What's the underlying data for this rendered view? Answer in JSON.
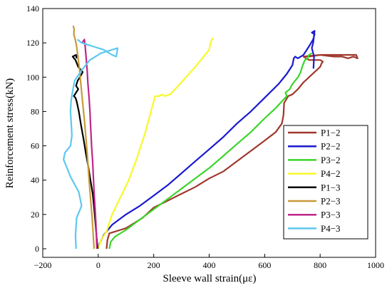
{
  "chart_data": {
    "type": "line",
    "title": "",
    "xlabel": "Sleeve wall strain(με)",
    "ylabel": "Reinforcement stress(kN)",
    "xlim": [
      -200,
      1000
    ],
    "ylim": [
      -5,
      140
    ],
    "xticks": [
      -200,
      0,
      200,
      400,
      600,
      800,
      1000
    ],
    "yticks": [
      0,
      20,
      40,
      60,
      80,
      100,
      120,
      140
    ],
    "grid": false,
    "legend": "center-right",
    "series": [
      {
        "name": "P1−2",
        "color": "#a0382d",
        "points": [
          [
            30,
            0
          ],
          [
            33,
            5
          ],
          [
            40,
            9
          ],
          [
            60,
            10
          ],
          [
            80,
            11
          ],
          [
            100,
            12
          ],
          [
            130,
            15
          ],
          [
            160,
            18
          ],
          [
            180,
            21
          ],
          [
            200,
            24
          ],
          [
            250,
            28
          ],
          [
            300,
            32
          ],
          [
            350,
            36
          ],
          [
            400,
            41
          ],
          [
            450,
            45
          ],
          [
            500,
            51
          ],
          [
            550,
            57
          ],
          [
            600,
            63
          ],
          [
            640,
            68
          ],
          [
            662,
            73
          ],
          [
            668,
            78
          ],
          [
            670,
            85
          ],
          [
            685,
            89
          ],
          [
            700,
            90
          ],
          [
            720,
            93
          ],
          [
            740,
            97
          ],
          [
            760,
            100
          ],
          [
            780,
            103
          ],
          [
            800,
            106
          ],
          [
            805,
            108
          ],
          [
            810,
            109
          ],
          [
            800,
            110
          ],
          [
            760,
            110
          ],
          [
            740,
            112
          ],
          [
            800,
            113
          ],
          [
            850,
            112
          ],
          [
            880,
            112
          ],
          [
            900,
            111
          ],
          [
            920,
            112
          ],
          [
            935,
            111
          ],
          [
            930,
            113
          ],
          [
            900,
            113
          ],
          [
            860,
            113
          ],
          [
            800,
            113
          ],
          [
            760,
            112
          ]
        ]
      },
      {
        "name": "P2−2",
        "color": "#1a1ad0",
        "points": [
          [
            0,
            0
          ],
          [
            5,
            3
          ],
          [
            20,
            8
          ],
          [
            50,
            14
          ],
          [
            100,
            20
          ],
          [
            150,
            25
          ],
          [
            200,
            31
          ],
          [
            250,
            37
          ],
          [
            300,
            44
          ],
          [
            350,
            51
          ],
          [
            400,
            58
          ],
          [
            450,
            65
          ],
          [
            500,
            73
          ],
          [
            550,
            80
          ],
          [
            600,
            88
          ],
          [
            650,
            96
          ],
          [
            680,
            102
          ],
          [
            700,
            107
          ],
          [
            705,
            111
          ],
          [
            710,
            112
          ],
          [
            720,
            111
          ],
          [
            740,
            113
          ],
          [
            760,
            118
          ],
          [
            775,
            122
          ],
          [
            780,
            125
          ],
          [
            770,
            126
          ],
          [
            780,
            127
          ],
          [
            775,
            120
          ],
          [
            770,
            117
          ],
          [
            778,
            112
          ],
          [
            776,
            105
          ]
        ]
      },
      {
        "name": "P3−2",
        "color": "#3ad62a",
        "points": [
          [
            40,
            0
          ],
          [
            45,
            4
          ],
          [
            60,
            7
          ],
          [
            100,
            11
          ],
          [
            150,
            17
          ],
          [
            200,
            23
          ],
          [
            250,
            29
          ],
          [
            300,
            35
          ],
          [
            350,
            41
          ],
          [
            400,
            47
          ],
          [
            450,
            54
          ],
          [
            500,
            61
          ],
          [
            550,
            68
          ],
          [
            600,
            76
          ],
          [
            640,
            82
          ],
          [
            668,
            87
          ],
          [
            680,
            89
          ],
          [
            675,
            91
          ],
          [
            690,
            93
          ],
          [
            700,
            96
          ],
          [
            720,
            100
          ],
          [
            730,
            103
          ],
          [
            735,
            106
          ],
          [
            745,
            110
          ],
          [
            755,
            111
          ],
          [
            760,
            113
          ],
          [
            770,
            114
          ]
        ]
      },
      {
        "name": "P4−2",
        "color": "#f8f82a",
        "points": [
          [
            0,
            0
          ],
          [
            10,
            5
          ],
          [
            30,
            10
          ],
          [
            50,
            20
          ],
          [
            80,
            30
          ],
          [
            110,
            40
          ],
          [
            140,
            53
          ],
          [
            170,
            68
          ],
          [
            190,
            80
          ],
          [
            205,
            89
          ],
          [
            220,
            89
          ],
          [
            230,
            90
          ],
          [
            240,
            89
          ],
          [
            260,
            90
          ],
          [
            300,
            97
          ],
          [
            350,
            106
          ],
          [
            380,
            112
          ],
          [
            400,
            116
          ],
          [
            405,
            120
          ],
          [
            410,
            122
          ],
          [
            415,
            123
          ]
        ]
      },
      {
        "name": "P1−3",
        "color": "#000000",
        "points": [
          [
            -2,
            0
          ],
          [
            -5,
            5
          ],
          [
            -10,
            15
          ],
          [
            -15,
            24
          ],
          [
            -20,
            32
          ],
          [
            -28,
            40
          ],
          [
            -36,
            48
          ],
          [
            -45,
            56
          ],
          [
            -53,
            64
          ],
          [
            -62,
            72
          ],
          [
            -70,
            80
          ],
          [
            -78,
            86
          ],
          [
            -82,
            88
          ],
          [
            -88,
            89
          ],
          [
            -80,
            91
          ],
          [
            -72,
            93
          ],
          [
            -80,
            95
          ],
          [
            -74,
            98
          ],
          [
            -66,
            100
          ],
          [
            -56,
            103
          ],
          [
            -72,
            106
          ],
          [
            -82,
            110
          ],
          [
            -92,
            112
          ],
          [
            -80,
            113
          ],
          [
            -78,
            111
          ]
        ]
      },
      {
        "name": "P2−3",
        "color": "#c99a3a",
        "points": [
          [
            -15,
            0
          ],
          [
            -18,
            8
          ],
          [
            -22,
            18
          ],
          [
            -28,
            30
          ],
          [
            -33,
            40
          ],
          [
            -38,
            52
          ],
          [
            -44,
            64
          ],
          [
            -50,
            75
          ],
          [
            -56,
            85
          ],
          [
            -62,
            95
          ],
          [
            -68,
            105
          ],
          [
            -74,
            113
          ],
          [
            -78,
            118
          ],
          [
            -83,
            122
          ],
          [
            -88,
            125
          ],
          [
            -87,
            128
          ],
          [
            -90,
            130
          ]
        ]
      },
      {
        "name": "P3−3",
        "color": "#c0268a",
        "points": [
          [
            -5,
            0
          ],
          [
            -7,
            10
          ],
          [
            -10,
            20
          ],
          [
            -14,
            30
          ],
          [
            -17,
            40
          ],
          [
            -20,
            50
          ],
          [
            -24,
            60
          ],
          [
            -27,
            70
          ],
          [
            -30,
            80
          ],
          [
            -33,
            88
          ],
          [
            -37,
            96
          ],
          [
            -40,
            104
          ],
          [
            -44,
            112
          ],
          [
            -47,
            118
          ],
          [
            -50,
            122
          ],
          [
            -58,
            120
          ]
        ]
      },
      {
        "name": "P4−3",
        "color": "#5cc8f0",
        "points": [
          [
            -80,
            0
          ],
          [
            -82,
            8
          ],
          [
            -78,
            18
          ],
          [
            -60,
            25
          ],
          [
            -70,
            33
          ],
          [
            -100,
            42
          ],
          [
            -115,
            48
          ],
          [
            -125,
            52
          ],
          [
            -120,
            56
          ],
          [
            -100,
            60
          ],
          [
            -95,
            66
          ],
          [
            -97,
            72
          ],
          [
            -100,
            80
          ],
          [
            -98,
            86
          ],
          [
            -92,
            92
          ],
          [
            -85,
            98
          ],
          [
            -60,
            104
          ],
          [
            -30,
            110
          ],
          [
            10,
            114
          ],
          [
            50,
            116
          ],
          [
            70,
            117
          ],
          [
            65,
            112
          ],
          [
            50,
            113
          ],
          [
            20,
            116
          ],
          [
            -20,
            118
          ],
          [
            -60,
            120
          ],
          [
            -75,
            122
          ]
        ]
      }
    ]
  }
}
